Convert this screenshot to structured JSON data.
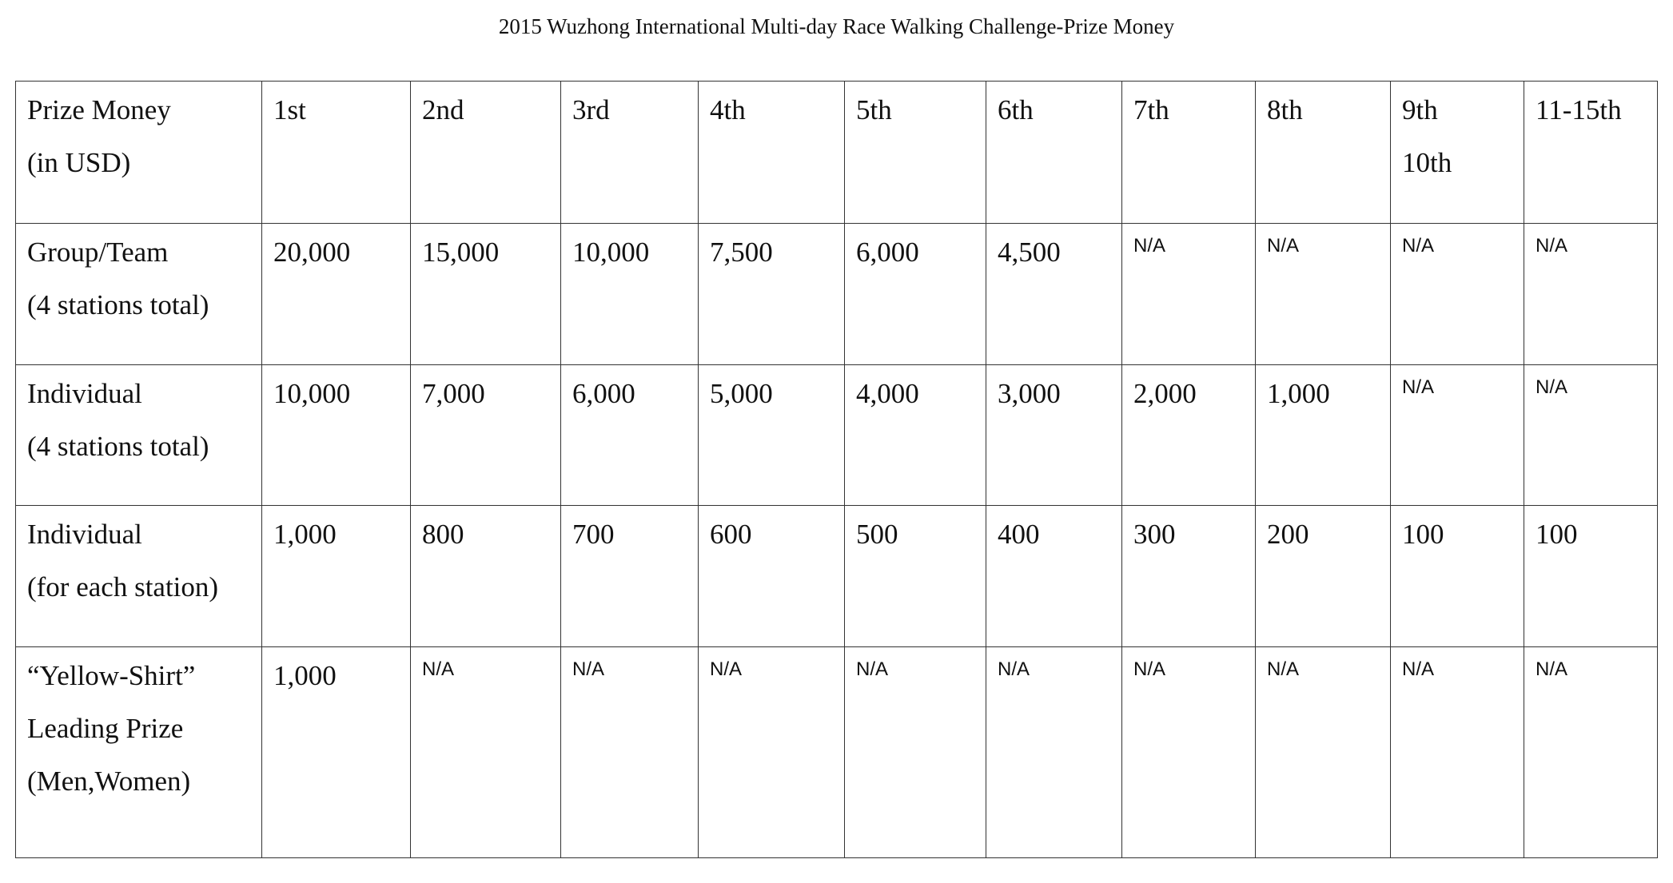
{
  "title": "2015 Wuzhong International Multi-day Race Walking Challenge-Prize Money",
  "table": {
    "header": [
      [
        "Prize Money",
        "(in USD)"
      ],
      [
        "1st"
      ],
      [
        "2nd"
      ],
      [
        "3rd"
      ],
      [
        "4th"
      ],
      [
        "5th"
      ],
      [
        "6th"
      ],
      [
        "7th"
      ],
      [
        "8th"
      ],
      [
        "9th",
        "10th"
      ],
      [
        "11-15th"
      ]
    ],
    "rows": [
      {
        "label": [
          "Group/Team",
          "(4 stations total)"
        ],
        "values": [
          "20,000",
          "15,000",
          "10,000",
          "7,500",
          "6,000",
          "4,500",
          "N/A",
          "N/A",
          "N/A",
          "N/A"
        ]
      },
      {
        "label": [
          "Individual",
          "(4 stations total)"
        ],
        "values": [
          "10,000",
          "7,000",
          "6,000",
          "5,000",
          "4,000",
          "3,000",
          "2,000",
          "1,000",
          "N/A",
          "N/A"
        ]
      },
      {
        "label": [
          "Individual",
          "(for each station)"
        ],
        "values": [
          "1,000",
          "800",
          "700",
          "600",
          "500",
          "400",
          "300",
          "200",
          "100",
          "100"
        ]
      },
      {
        "label": [
          "“Yellow-Shirt”",
          "Leading Prize",
          "(Men,Women)"
        ],
        "values": [
          "1,000",
          "N/A",
          "N/A",
          "N/A",
          "N/A",
          "N/A",
          "N/A",
          "N/A",
          "N/A",
          "N/A"
        ]
      }
    ]
  }
}
